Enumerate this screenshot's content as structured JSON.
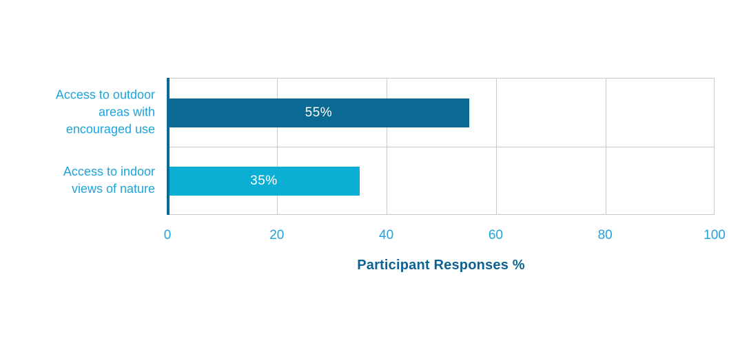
{
  "chart_data": {
    "type": "bar",
    "orientation": "horizontal",
    "title": "",
    "xlabel": "Participant Responses %",
    "ylabel": "",
    "xlim": [
      0,
      100
    ],
    "xticks": [
      0,
      20,
      40,
      60,
      80,
      100
    ],
    "grid": "vertical gridlines at each x tick plus horizontal row divider",
    "legend_position": "none",
    "categories": [
      "Access to outdoor areas with encouraged use",
      "Access to indoor views of nature"
    ],
    "category_label_lines": [
      [
        "Access to outdoor",
        "areas with",
        "encouraged use"
      ],
      [
        "Access to indoor",
        "views of nature"
      ]
    ],
    "values": [
      55,
      35
    ],
    "value_labels": [
      "55%",
      "35%"
    ],
    "bar_colors": [
      "#0b6a94",
      "#0cafd4"
    ]
  },
  "colors": {
    "background": "#ffffff",
    "bar_dark_blue": "#0b6a94",
    "bar_cyan": "#0cafd4",
    "category_label_text": "#1ea3d9",
    "tick_label_text": "#1ea3d9",
    "axis_title_text": "#0d6190",
    "value_label_text": "#ffffff",
    "gridline": "#c9c9c9",
    "y_axis_line": "#0b6a94"
  }
}
